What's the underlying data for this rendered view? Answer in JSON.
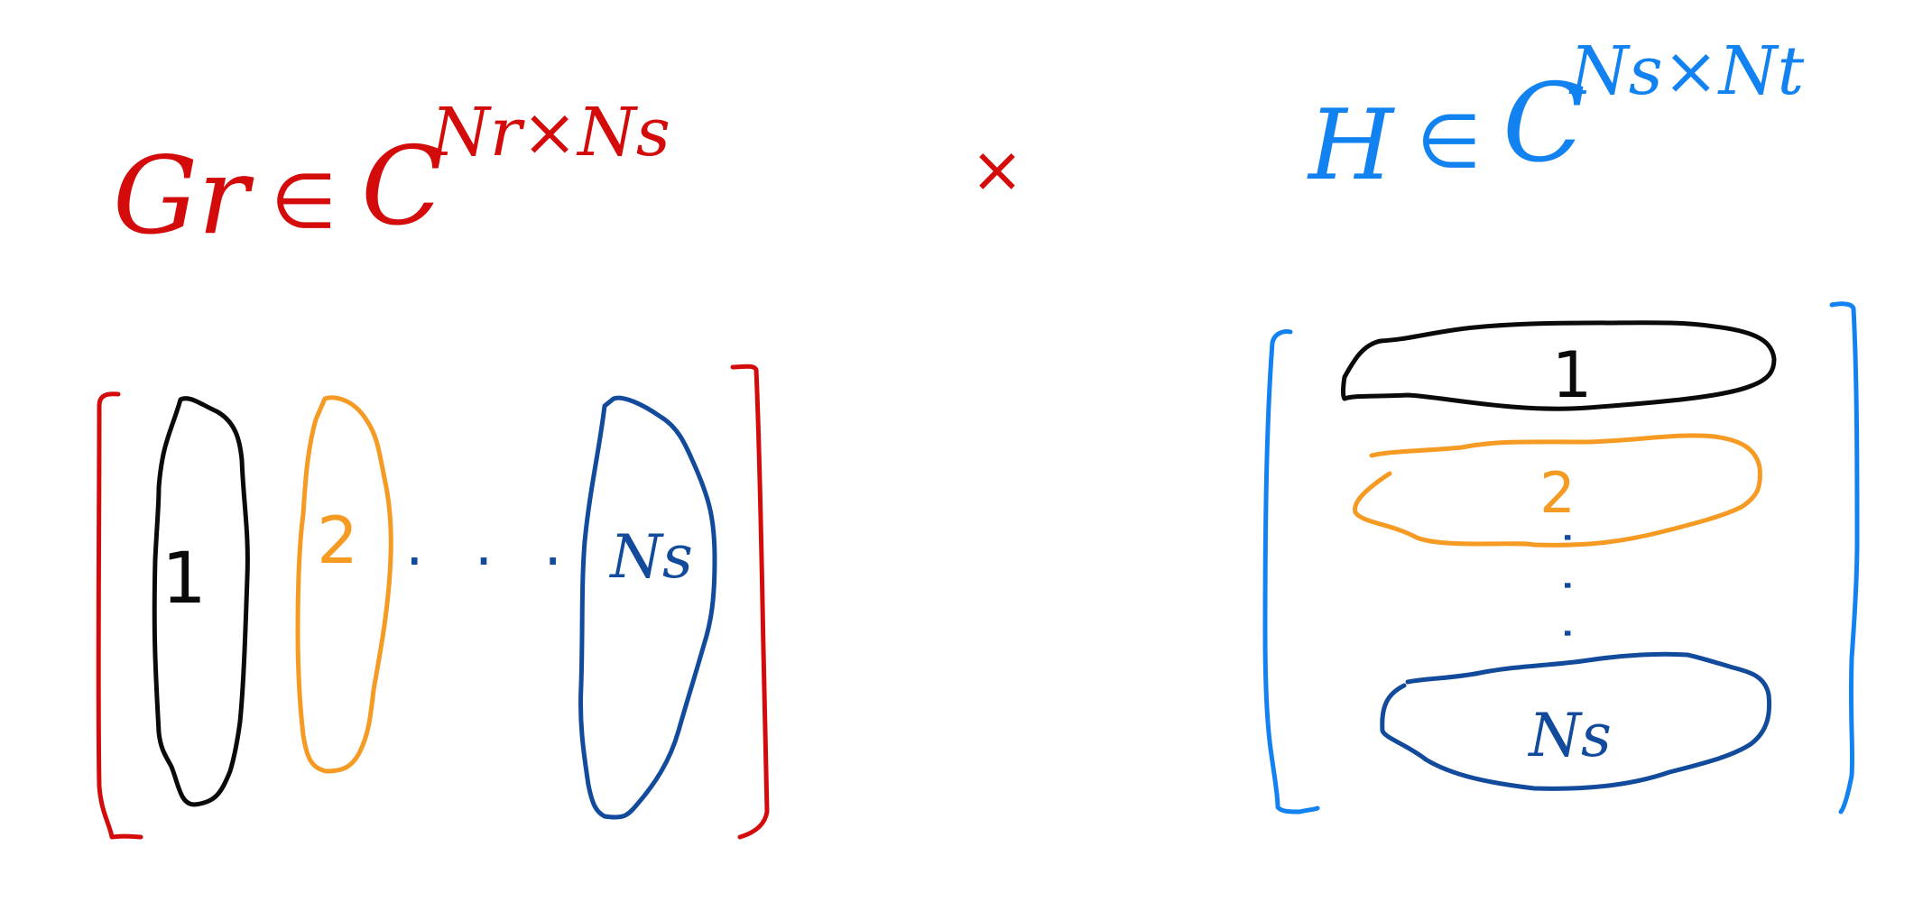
{
  "colors": {
    "red": "#d40b0b",
    "black": "#0a0a0a",
    "orange": "#f59a22",
    "navy": "#124a9c",
    "blue": "#1282f0"
  },
  "left_matrix": {
    "symbol": "Gr",
    "membership": "∈",
    "field": "C",
    "dims": "Nr×Ns",
    "columns": [
      {
        "label": "1"
      },
      {
        "label": "2"
      },
      {
        "label": "Ns"
      }
    ],
    "ellipsis": ". . ."
  },
  "operator": "×",
  "right_matrix": {
    "symbol": "H",
    "membership": "∈",
    "field": "C",
    "dims": "Ns×Nt",
    "rows": [
      {
        "label": "1"
      },
      {
        "label": "2"
      },
      {
        "label": "Ns"
      }
    ],
    "ellipsis": ". . ."
  }
}
